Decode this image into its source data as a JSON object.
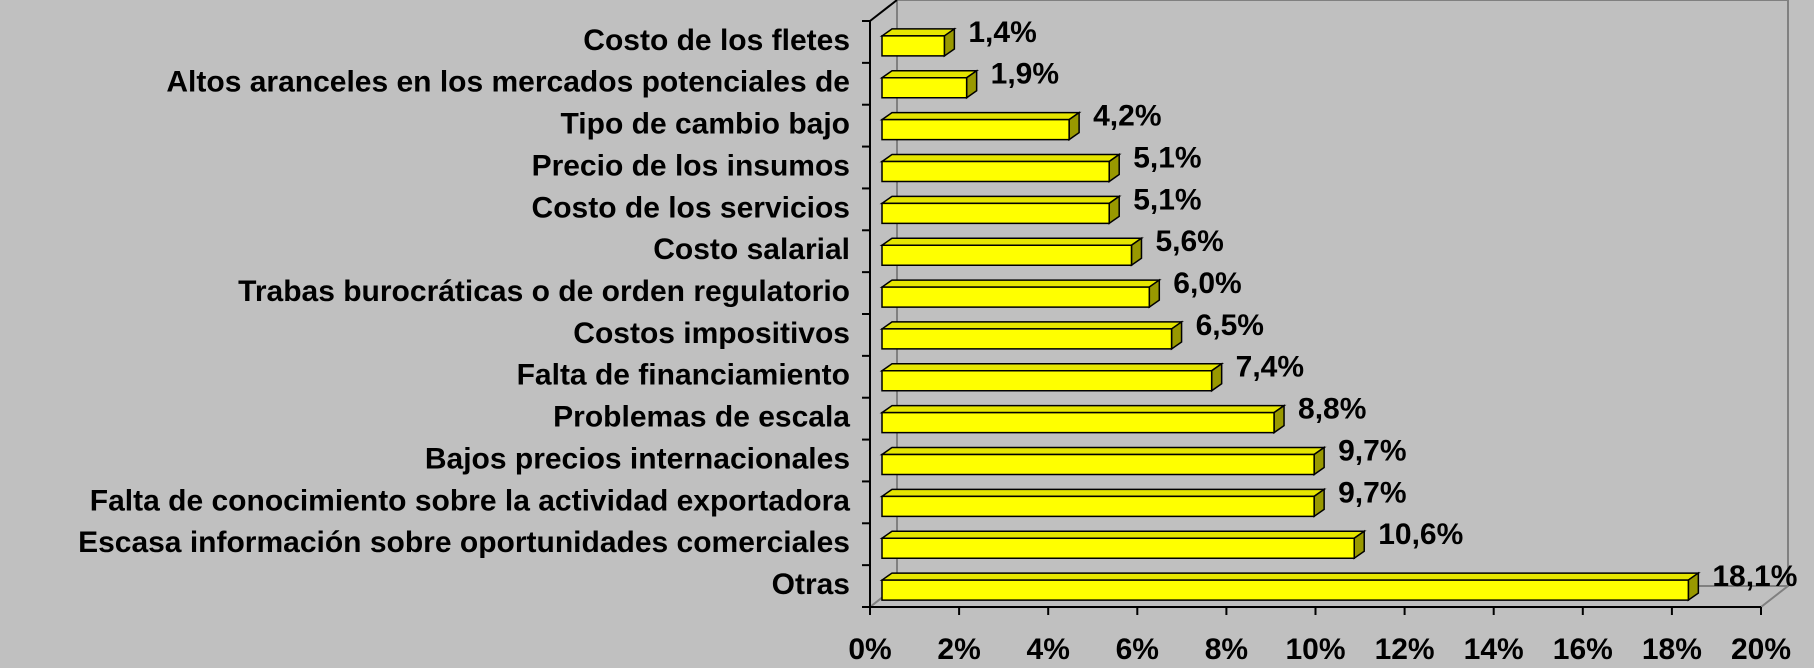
{
  "chart_data": {
    "type": "bar",
    "orientation": "horizontal",
    "categories": [
      "Costo de los fletes",
      "Altos aranceles en los mercados potenciales de",
      "Tipo de cambio bajo",
      "Precio de los insumos",
      "Costo de los servicios",
      "Costo salarial",
      "Trabas burocráticas o de orden regulatorio",
      "Costos impositivos",
      "Falta de financiamiento",
      "Problemas de escala",
      "Bajos precios internacionales",
      "Falta de conocimiento sobre la actividad exportadora",
      "Escasa información sobre oportunidades comerciales",
      "Otras"
    ],
    "values": [
      1.4,
      1.9,
      4.2,
      5.1,
      5.1,
      5.6,
      6.0,
      6.5,
      7.4,
      8.8,
      9.7,
      9.7,
      10.6,
      18.1
    ],
    "value_labels": [
      "1,4%",
      "1,9%",
      "4,2%",
      "5,1%",
      "5,1%",
      "5,6%",
      "6,0%",
      "6,5%",
      "7,4%",
      "8,8%",
      "9,7%",
      "9,7%",
      "10,6%",
      "18,1%"
    ],
    "color": "#ffff00",
    "xlim": [
      0,
      20
    ],
    "xticks": [
      {
        "value": 0,
        "label": "0%"
      },
      {
        "value": 2,
        "label": "2%"
      },
      {
        "value": 4,
        "label": "4%"
      },
      {
        "value": 6,
        "label": "6%"
      },
      {
        "value": 8,
        "label": "8%"
      },
      {
        "value": 10,
        "label": "10%"
      },
      {
        "value": 12,
        "label": "12%"
      },
      {
        "value": 14,
        "label": "14%"
      },
      {
        "value": 16,
        "label": "16%"
      },
      {
        "value": 18,
        "label": "18%"
      },
      {
        "value": 20,
        "label": "20%"
      }
    ]
  }
}
